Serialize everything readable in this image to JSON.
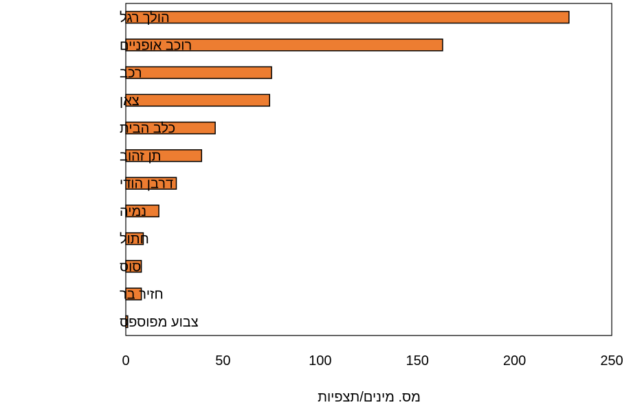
{
  "chart_data": {
    "type": "bar",
    "orientation": "horizontal",
    "categories": [
      "הולך רגל",
      "רוכב אופניים",
      "רכב",
      "צאן",
      "כלב הבית",
      "תן זהוב",
      "דרבן הודי",
      "נמיה",
      "חתול",
      "סוס",
      "חזיר בר",
      "צבוע מפוספס"
    ],
    "values": [
      228,
      163,
      75,
      74,
      46,
      39,
      26,
      17,
      9,
      8,
      8,
      1
    ],
    "title": "",
    "xlabel": "מס. מינים/תצפיות",
    "ylabel": "",
    "xlim": [
      0,
      250
    ],
    "xticks": [
      "0",
      "50",
      "100",
      "150",
      "200",
      "250"
    ],
    "bar_color": "#ed7d31",
    "bar_edge_color": "#000000",
    "grid": false,
    "legend": "none"
  }
}
